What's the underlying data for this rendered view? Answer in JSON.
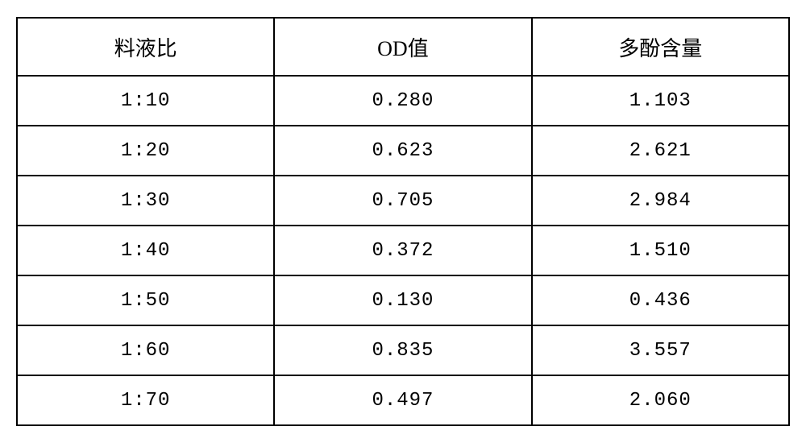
{
  "table": {
    "type": "table",
    "columns": [
      "料液比",
      "OD值",
      "多酚含量"
    ],
    "rows": [
      [
        "1:10",
        "0.280",
        "1.103"
      ],
      [
        "1:20",
        "0.623",
        "2.621"
      ],
      [
        "1:30",
        "0.705",
        "2.984"
      ],
      [
        "1:40",
        "0.372",
        "1.510"
      ],
      [
        "1:50",
        "0.130",
        "0.436"
      ],
      [
        "1:60",
        "0.835",
        "3.557"
      ],
      [
        "1:70",
        "0.497",
        "2.060"
      ]
    ],
    "border_color": "#000000",
    "border_width": 2,
    "background_color": "#ffffff",
    "text_color": "#000000",
    "header_fontsize": 26,
    "cell_fontsize": 24,
    "header_row_height": 72,
    "data_row_height": 62,
    "column_widths_pct": [
      33.33,
      33.33,
      33.34
    ],
    "font_family_header": "SimSun",
    "font_family_data": "Courier New"
  }
}
